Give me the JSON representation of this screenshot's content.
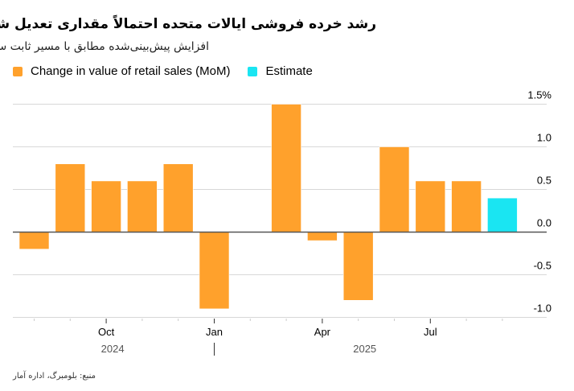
{
  "chart_data": {
    "type": "bar",
    "title": "رشد خرده فروشی ایالات متحده احتمالاً مقداری تعدیل شده است",
    "subtitle": "افزایش پیش‌بینی‌شده مطابق با مسیر ثابت سه‌ماهه سوم",
    "xlabel": "",
    "ylabel": "",
    "ylim": [
      -1.0,
      1.5
    ],
    "yticks": [
      1.5,
      1.0,
      0.5,
      0.0,
      -0.5,
      -1.0
    ],
    "ytick_labels": [
      "1.5%",
      "1.0",
      "0.5",
      "0.0",
      "-0.5",
      "-1.0"
    ],
    "grid": true,
    "legend_position": "top-left",
    "categories": [
      "Aug 2024",
      "Sep 2024",
      "Oct 2024",
      "Nov 2024",
      "Dec 2024",
      "Jan 2025",
      "Feb 2025",
      "Mar 2025",
      "Apr 2025",
      "May 2025",
      "Jun 2025",
      "Jul 2025",
      "Aug 2025",
      "Sep 2025"
    ],
    "x_major_labels": [
      {
        "category": "Oct 2024",
        "label": "Oct"
      },
      {
        "category": "Jan 2025",
        "label": "Jan"
      },
      {
        "category": "Apr 2025",
        "label": "Apr"
      },
      {
        "category": "Jul 2025",
        "label": "Jul"
      }
    ],
    "year_labels": [
      {
        "label": "2024",
        "center_category": "Oct 2024"
      },
      {
        "label": "2025",
        "center_category": "May 2025"
      }
    ],
    "series": [
      {
        "name": "Change in value of retail sales (MoM)",
        "color": "#FFA12C",
        "values": [
          -0.2,
          0.8,
          0.6,
          0.6,
          0.8,
          -0.9,
          null,
          1.5,
          -0.1,
          -0.8,
          1.0,
          0.6,
          0.6,
          null
        ]
      },
      {
        "name": "Estimate",
        "color": "#1AE5F2",
        "values": [
          null,
          null,
          null,
          null,
          null,
          null,
          null,
          null,
          null,
          null,
          null,
          null,
          null,
          0.4
        ]
      }
    ]
  },
  "footer": {
    "source": "منبع: بلومبرگ، اداره آمار"
  }
}
